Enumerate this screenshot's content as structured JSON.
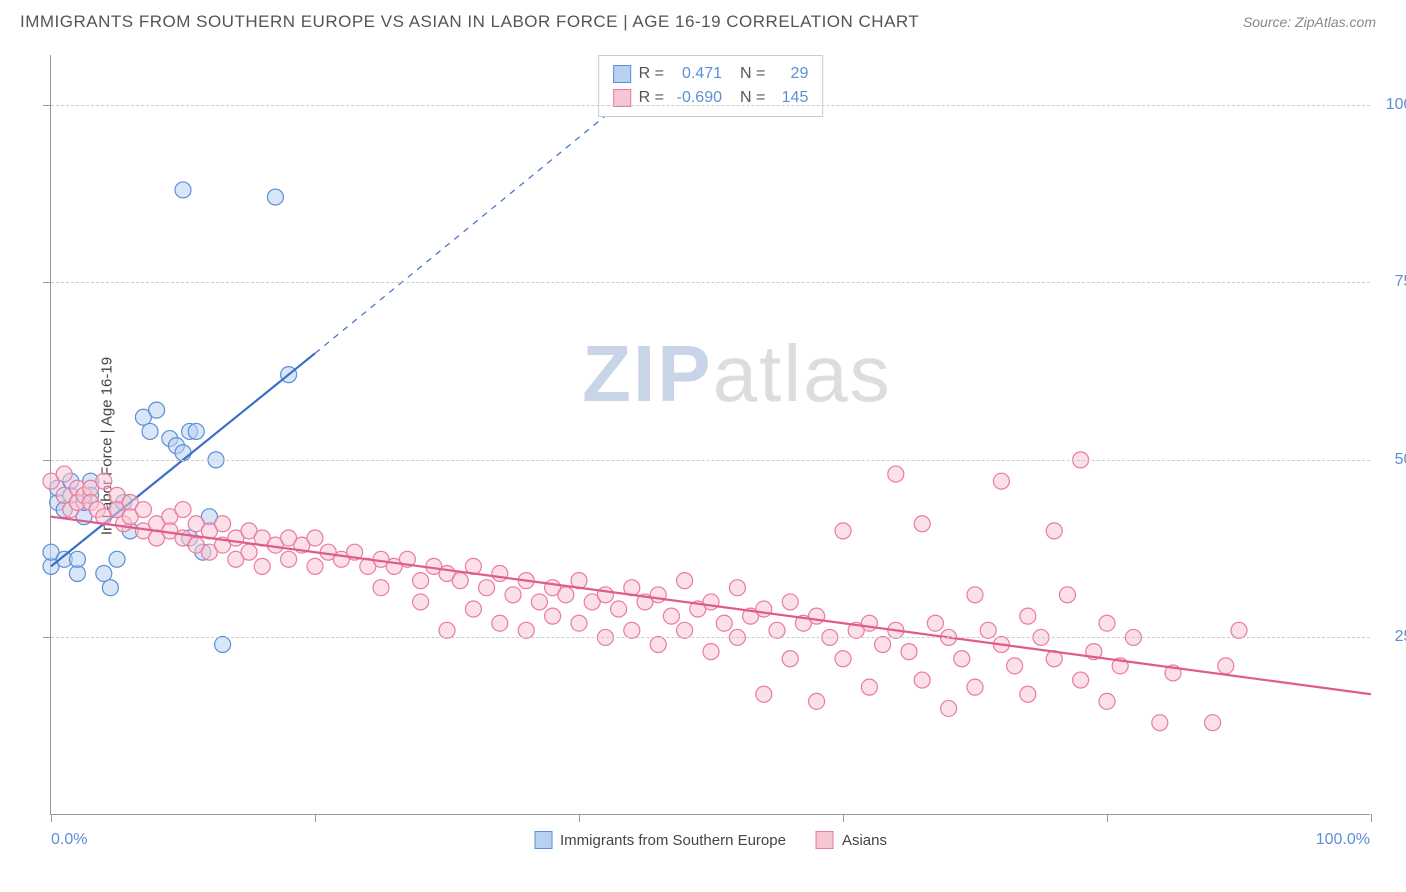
{
  "header": {
    "title": "IMMIGRANTS FROM SOUTHERN EUROPE VS ASIAN IN LABOR FORCE | AGE 16-19 CORRELATION CHART",
    "source_prefix": "Source: ",
    "source": "ZipAtlas.com"
  },
  "chart": {
    "type": "scatter",
    "ylabel": "In Labor Force | Age 16-19",
    "xlim": [
      0,
      100
    ],
    "ylim": [
      0,
      107
    ],
    "x_ticks": [
      0,
      20,
      40,
      60,
      80,
      100
    ],
    "y_gridlines": [
      25,
      50,
      75,
      100
    ],
    "y_tick_labels": [
      "25.0%",
      "50.0%",
      "75.0%",
      "100.0%"
    ],
    "x_left_label": "0.0%",
    "x_right_label": "100.0%",
    "background_color": "#ffffff",
    "grid_color": "#cccccc",
    "axis_color": "#999999",
    "marker_radius": 8,
    "marker_stroke_width": 1.2,
    "line_width": 2.2,
    "series": [
      {
        "name": "Immigrants from Southern Europe",
        "fill_color": "#b9d1f0",
        "stroke_color": "#5b8fd6",
        "line_color": "#3b6fc6",
        "R": "0.471",
        "N": "29",
        "trend": {
          "x1": 0,
          "y1": 35,
          "x2": 20,
          "y2": 65,
          "dash_x2": 45,
          "dash_y2": 103
        },
        "points": [
          [
            0,
            35
          ],
          [
            0,
            37
          ],
          [
            0.5,
            44
          ],
          [
            0.5,
            46
          ],
          [
            1,
            36
          ],
          [
            1,
            43
          ],
          [
            1.5,
            45
          ],
          [
            1.5,
            47
          ],
          [
            2,
            34
          ],
          [
            2,
            36
          ],
          [
            2.5,
            42
          ],
          [
            2.5,
            44
          ],
          [
            3,
            47
          ],
          [
            3,
            45
          ],
          [
            4,
            34
          ],
          [
            4.5,
            32
          ],
          [
            5,
            43
          ],
          [
            5,
            36
          ],
          [
            5.5,
            44
          ],
          [
            6,
            40
          ],
          [
            7,
            56
          ],
          [
            7.5,
            54
          ],
          [
            8,
            57
          ],
          [
            9,
            53
          ],
          [
            9.5,
            52
          ],
          [
            10,
            51
          ],
          [
            10,
            88
          ],
          [
            10.5,
            39
          ],
          [
            10.5,
            54
          ],
          [
            11,
            54
          ],
          [
            11.5,
            37
          ],
          [
            12,
            42
          ],
          [
            12.5,
            50
          ],
          [
            13,
            24
          ],
          [
            17,
            87
          ],
          [
            18,
            62
          ]
        ]
      },
      {
        "name": "Asians",
        "fill_color": "#f7c6d3",
        "stroke_color": "#e97ba0",
        "line_color": "#e05b8a",
        "R": "-0.690",
        "N": "145",
        "trend": {
          "x1": 0,
          "y1": 42,
          "x2": 100,
          "y2": 17
        },
        "points": [
          [
            0,
            47
          ],
          [
            1,
            48
          ],
          [
            1,
            45
          ],
          [
            1.5,
            43
          ],
          [
            2,
            46
          ],
          [
            2,
            44
          ],
          [
            2.5,
            45
          ],
          [
            3,
            46
          ],
          [
            3,
            44
          ],
          [
            3.5,
            43
          ],
          [
            4,
            47
          ],
          [
            4,
            42
          ],
          [
            5,
            45
          ],
          [
            5,
            43
          ],
          [
            5.5,
            41
          ],
          [
            6,
            44
          ],
          [
            6,
            42
          ],
          [
            7,
            43
          ],
          [
            7,
            40
          ],
          [
            8,
            41
          ],
          [
            8,
            39
          ],
          [
            9,
            42
          ],
          [
            9,
            40
          ],
          [
            10,
            43
          ],
          [
            10,
            39
          ],
          [
            11,
            41
          ],
          [
            11,
            38
          ],
          [
            12,
            40
          ],
          [
            12,
            37
          ],
          [
            13,
            41
          ],
          [
            13,
            38
          ],
          [
            14,
            39
          ],
          [
            14,
            36
          ],
          [
            15,
            40
          ],
          [
            15,
            37
          ],
          [
            16,
            39
          ],
          [
            16,
            35
          ],
          [
            17,
            38
          ],
          [
            18,
            39
          ],
          [
            18,
            36
          ],
          [
            19,
            38
          ],
          [
            20,
            39
          ],
          [
            20,
            35
          ],
          [
            21,
            37
          ],
          [
            22,
            36
          ],
          [
            23,
            37
          ],
          [
            24,
            35
          ],
          [
            25,
            36
          ],
          [
            25,
            32
          ],
          [
            26,
            35
          ],
          [
            27,
            36
          ],
          [
            28,
            33
          ],
          [
            28,
            30
          ],
          [
            29,
            35
          ],
          [
            30,
            34
          ],
          [
            30,
            26
          ],
          [
            31,
            33
          ],
          [
            32,
            35
          ],
          [
            32,
            29
          ],
          [
            33,
            32
          ],
          [
            34,
            34
          ],
          [
            34,
            27
          ],
          [
            35,
            31
          ],
          [
            36,
            33
          ],
          [
            36,
            26
          ],
          [
            37,
            30
          ],
          [
            38,
            32
          ],
          [
            38,
            28
          ],
          [
            39,
            31
          ],
          [
            40,
            33
          ],
          [
            40,
            27
          ],
          [
            41,
            30
          ],
          [
            42,
            31
          ],
          [
            42,
            25
          ],
          [
            43,
            29
          ],
          [
            44,
            32
          ],
          [
            44,
            26
          ],
          [
            45,
            30
          ],
          [
            46,
            31
          ],
          [
            46,
            24
          ],
          [
            47,
            28
          ],
          [
            48,
            33
          ],
          [
            48,
            26
          ],
          [
            49,
            29
          ],
          [
            50,
            30
          ],
          [
            50,
            23
          ],
          [
            51,
            27
          ],
          [
            52,
            32
          ],
          [
            52,
            25
          ],
          [
            53,
            28
          ],
          [
            54,
            29
          ],
          [
            54,
            17
          ],
          [
            55,
            26
          ],
          [
            56,
            30
          ],
          [
            56,
            22
          ],
          [
            57,
            27
          ],
          [
            58,
            28
          ],
          [
            58,
            16
          ],
          [
            59,
            25
          ],
          [
            60,
            40
          ],
          [
            60,
            22
          ],
          [
            61,
            26
          ],
          [
            62,
            27
          ],
          [
            62,
            18
          ],
          [
            63,
            24
          ],
          [
            64,
            26
          ],
          [
            64,
            48
          ],
          [
            65,
            23
          ],
          [
            66,
            41
          ],
          [
            66,
            19
          ],
          [
            67,
            27
          ],
          [
            68,
            25
          ],
          [
            68,
            15
          ],
          [
            69,
            22
          ],
          [
            70,
            31
          ],
          [
            70,
            18
          ],
          [
            71,
            26
          ],
          [
            72,
            24
          ],
          [
            72,
            47
          ],
          [
            73,
            21
          ],
          [
            74,
            28
          ],
          [
            74,
            17
          ],
          [
            75,
            25
          ],
          [
            76,
            22
          ],
          [
            76,
            40
          ],
          [
            77,
            31
          ],
          [
            78,
            50
          ],
          [
            78,
            19
          ],
          [
            79,
            23
          ],
          [
            80,
            27
          ],
          [
            80,
            16
          ],
          [
            81,
            21
          ],
          [
            82,
            25
          ],
          [
            84,
            13
          ],
          [
            85,
            20
          ],
          [
            88,
            13
          ],
          [
            89,
            21
          ],
          [
            90,
            26
          ]
        ]
      }
    ],
    "legend": [
      {
        "label": "Immigrants from Southern Europe",
        "fill": "#b9d1f0",
        "stroke": "#5b8fd6"
      },
      {
        "label": "Asians",
        "fill": "#f7c6d3",
        "stroke": "#e97ba0"
      }
    ],
    "stats_labels": {
      "R": "R =",
      "N": "N ="
    }
  },
  "watermark": {
    "part1": "ZIP",
    "part2": "atlas"
  }
}
